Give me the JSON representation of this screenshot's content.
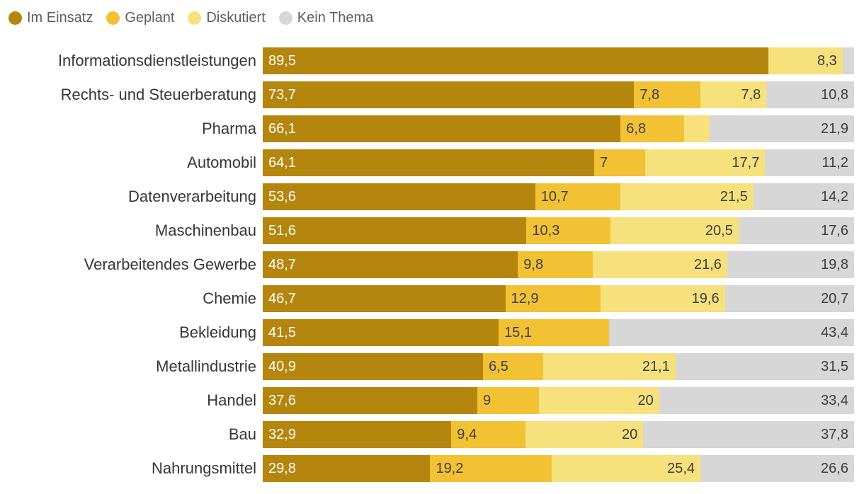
{
  "legend": {
    "items": [
      {
        "label": "Im Einsatz",
        "color": "#B5860D"
      },
      {
        "label": "Geplant",
        "color": "#F2C234"
      },
      {
        "label": "Diskutiert",
        "color": "#F7E17C"
      },
      {
        "label": "Kein Thema",
        "color": "#D7D7D7"
      }
    ]
  },
  "chart_data": {
    "type": "bar",
    "orientation": "horizontal-stacked",
    "unit": "percent",
    "xlim": [
      0,
      100
    ],
    "grid": false,
    "legend_position": "top-left",
    "series": [
      "Im Einsatz",
      "Geplant",
      "Diskutiert",
      "Kein Thema"
    ],
    "colors": [
      "#B5860D",
      "#F2C234",
      "#F7E17C",
      "#D7D7D7"
    ],
    "categories": [
      "Informationsdienstleistungen",
      "Rechts- und Steuerberatung",
      "Pharma",
      "Automobil",
      "Datenverarbeitung",
      "Maschinenbau",
      "Verarbeitendes Gewerbe",
      "Chemie",
      "Bekleidung",
      "Metallindustrie",
      "Handel",
      "Bau",
      "Nahrungsmittel"
    ],
    "rows": [
      {
        "category": "Informationsdienstleistungen",
        "values": [
          89.5,
          0,
          8.3,
          2.2
        ],
        "labels": [
          "89,5",
          "",
          "8,3",
          ""
        ]
      },
      {
        "category": "Rechts- und Steuerberatung",
        "values": [
          73.7,
          7.8,
          7.8,
          10.8
        ],
        "labels": [
          "73,7",
          "7,8",
          "7,8",
          "10,8"
        ]
      },
      {
        "category": "Pharma",
        "values": [
          66.1,
          6.8,
          5.2,
          21.9
        ],
        "labels": [
          "66,1",
          "6,8",
          "",
          "21,9"
        ]
      },
      {
        "category": "Automobil",
        "values": [
          64.1,
          7,
          17.7,
          11.2
        ],
        "labels": [
          "64,1",
          "7",
          "17,7",
          "11,2"
        ]
      },
      {
        "category": "Datenverarbeitung",
        "values": [
          53.6,
          10.7,
          21.5,
          14.2
        ],
        "labels": [
          "53,6",
          "10,7",
          "21,5",
          "14,2"
        ]
      },
      {
        "category": "Maschinenbau",
        "values": [
          51.6,
          10.3,
          20.5,
          17.6
        ],
        "labels": [
          "51,6",
          "10,3",
          "20,5",
          "17,6"
        ]
      },
      {
        "category": "Verarbeitendes Gewerbe",
        "values": [
          48.7,
          9.8,
          21.6,
          19.8
        ],
        "labels": [
          "48,7",
          "9,8",
          "21,6",
          "19,8"
        ]
      },
      {
        "category": "Chemie",
        "values": [
          46.7,
          12.9,
          19.6,
          20.7
        ],
        "labels": [
          "46,7",
          "12,9",
          "19,6",
          "20,7"
        ]
      },
      {
        "category": "Bekleidung",
        "values": [
          41.5,
          15.1,
          0,
          43.4
        ],
        "labels": [
          "41,5",
          "15,1",
          "",
          "43,4"
        ]
      },
      {
        "category": "Metallindustrie",
        "values": [
          40.9,
          6.5,
          21.1,
          31.5
        ],
        "labels": [
          "40,9",
          "6,5",
          "21,1",
          "31,5"
        ]
      },
      {
        "category": "Handel",
        "values": [
          37.6,
          9,
          20,
          33.4
        ],
        "labels": [
          "37,6",
          "9",
          "20",
          "33,4"
        ]
      },
      {
        "category": "Bau",
        "values": [
          32.9,
          9.4,
          20,
          37.8
        ],
        "labels": [
          "32,9",
          "9,4",
          "20",
          "37,8"
        ]
      },
      {
        "category": "Nahrungsmittel",
        "values": [
          29.8,
          19.2,
          25.4,
          26.6
        ],
        "labels": [
          "29,8",
          "19,2",
          "25,4",
          "26,6"
        ]
      }
    ]
  }
}
